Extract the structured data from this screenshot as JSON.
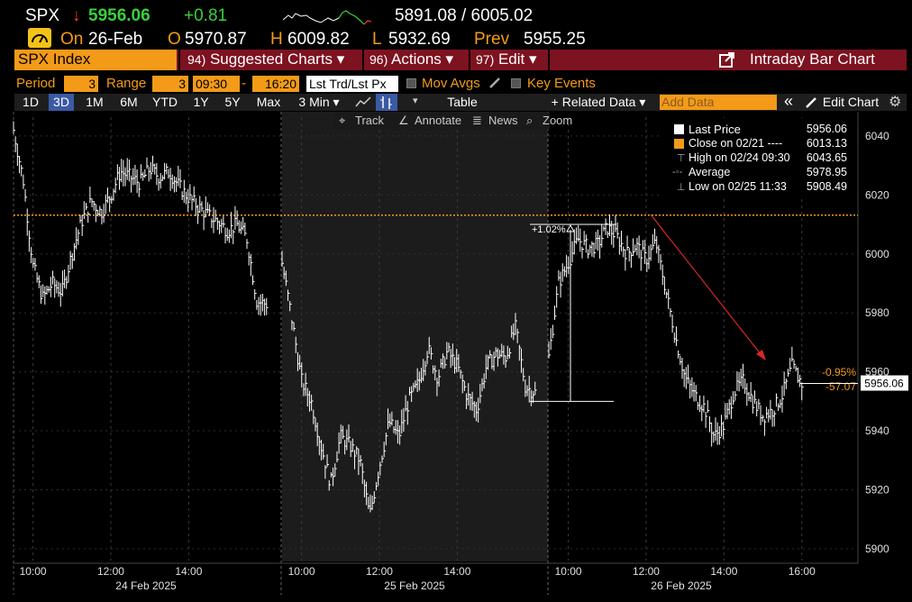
{
  "quote": {
    "ticker": "SPX",
    "arrow": "↓",
    "last": "5956.06",
    "change": "+0.81",
    "low_high": "5891.08 / 6005.02",
    "on_label": "On",
    "date": "26-Feb",
    "open_label": "O",
    "open": "5970.87",
    "high_label": "H",
    "high": "6009.82",
    "low_label": "L",
    "low": "5932.69",
    "prev_label": "Prev",
    "prev": "5955.25"
  },
  "menu": {
    "index_name": "SPX Index",
    "items": [
      {
        "num": "94)",
        "label": "Suggested Charts ▾"
      },
      {
        "num": "96)",
        "label": "Actions ▾"
      },
      {
        "num": "97)",
        "label": "Edit ▾"
      }
    ],
    "right_label": "Intraday Bar Chart"
  },
  "controls": {
    "period_label": "Period",
    "period_value": "3",
    "range_label": "Range",
    "range_value": "3",
    "time_from": "09:30",
    "time_to": "16:20",
    "lst_trd": "Lst Trd/Lst Px",
    "mov_avgs": "Mov Avgs",
    "key_events": "Key Events"
  },
  "tabs": {
    "ranges": [
      "1D",
      "3D",
      "1M",
      "6M",
      "YTD",
      "1Y",
      "5Y",
      "Max"
    ],
    "selected": "3D",
    "interval": "3 Min ▾",
    "table": "Table",
    "related": "+ Related Data ▾",
    "add_data_placeholder": "Add Data",
    "collapse": "«",
    "edit_chart": "Edit Chart"
  },
  "toolbar": {
    "track": "Track",
    "annotate": "Annotate",
    "news": "News",
    "zoom": "Zoom"
  },
  "legend": {
    "rows": [
      {
        "label": "Last Price",
        "value": "5956.06"
      },
      {
        "label": "Close on 02/21 ----",
        "value": "6013.13"
      },
      {
        "label": "High on 02/24 09:30",
        "value": "6043.65"
      },
      {
        "label": "Average",
        "value": "5978.95"
      },
      {
        "label": "Low on 02/25 11:33",
        "value": "5908.49"
      }
    ]
  },
  "colors": {
    "orange": "#f39a19",
    "green": "#38d13a",
    "red": "#ff3b30",
    "menu_red": "#7d1220",
    "blue_sel": "#3a5aa5"
  },
  "annotations": {
    "pct_up": "+1.02%",
    "pct_down": "-0.95%",
    "pts_down": "-57.07",
    "last_tag": "5956.06"
  },
  "chart_data": {
    "type": "bar",
    "y_ticks": [
      5900,
      5920,
      5940,
      5960,
      5980,
      6000,
      6020,
      6040
    ],
    "ylim": [
      5896,
      6047
    ],
    "prev_close_line": 6013.13,
    "days": [
      {
        "label": "24 Feb 2025",
        "ticks": [
          "10:00",
          "12:00",
          "14:00"
        ]
      },
      {
        "label": "25 Feb 2025",
        "ticks": [
          "10:00",
          "12:00",
          "14:00"
        ]
      },
      {
        "label": "26 Feb 2025",
        "ticks": [
          "10:00",
          "12:00",
          "14:00",
          "16:00"
        ]
      }
    ],
    "day_paths": [
      [
        [
          9.5,
          6042
        ],
        [
          9.75,
          6025
        ],
        [
          10.0,
          5996
        ],
        [
          10.25,
          5985
        ],
        [
          10.5,
          5990
        ],
        [
          10.75,
          5987
        ],
        [
          11.0,
          6000
        ],
        [
          11.25,
          6011
        ],
        [
          11.5,
          6018
        ],
        [
          11.75,
          6014
        ],
        [
          12.0,
          6020
        ],
        [
          12.25,
          6028
        ],
        [
          12.5,
          6026
        ],
        [
          12.75,
          6024
        ],
        [
          13.0,
          6029
        ],
        [
          13.25,
          6026
        ],
        [
          13.5,
          6028
        ],
        [
          13.75,
          6023
        ],
        [
          14.0,
          6019
        ],
        [
          14.25,
          6016
        ],
        [
          14.5,
          6013
        ],
        [
          14.75,
          6011
        ],
        [
          15.0,
          6008
        ],
        [
          15.25,
          6010
        ],
        [
          15.5,
          6005
        ],
        [
          15.75,
          5984
        ],
        [
          16.0,
          5983
        ]
      ],
      [
        [
          9.5,
          5997
        ],
        [
          9.75,
          5978
        ],
        [
          10.0,
          5957
        ],
        [
          10.25,
          5950
        ],
        [
          10.5,
          5935
        ],
        [
          10.75,
          5922
        ],
        [
          11.0,
          5938
        ],
        [
          11.25,
          5935
        ],
        [
          11.5,
          5930
        ],
        [
          11.75,
          5911
        ],
        [
          12.0,
          5928
        ],
        [
          12.25,
          5943
        ],
        [
          12.5,
          5938
        ],
        [
          12.75,
          5950
        ],
        [
          13.0,
          5956
        ],
        [
          13.25,
          5968
        ],
        [
          13.5,
          5958
        ],
        [
          13.75,
          5967
        ],
        [
          14.0,
          5962
        ],
        [
          14.25,
          5952
        ],
        [
          14.5,
          5947
        ],
        [
          14.75,
          5962
        ],
        [
          15.0,
          5966
        ],
        [
          15.25,
          5965
        ],
        [
          15.5,
          5975
        ],
        [
          15.75,
          5955
        ],
        [
          16.0,
          5953
        ]
      ],
      [
        [
          9.5,
          5965
        ],
        [
          9.75,
          5990
        ],
        [
          10.0,
          5997
        ],
        [
          10.25,
          6005
        ],
        [
          10.5,
          6002
        ],
        [
          10.75,
          6003
        ],
        [
          11.0,
          6009
        ],
        [
          11.25,
          6006
        ],
        [
          11.5,
          6000
        ],
        [
          11.75,
          6003
        ],
        [
          12.0,
          5998
        ],
        [
          12.25,
          6004
        ],
        [
          12.5,
          5988
        ],
        [
          12.75,
          5972
        ],
        [
          13.0,
          5958
        ],
        [
          13.25,
          5952
        ],
        [
          13.5,
          5948
        ],
        [
          13.75,
          5938
        ],
        [
          14.0,
          5942
        ],
        [
          14.25,
          5953
        ],
        [
          14.5,
          5957
        ],
        [
          14.75,
          5950
        ],
        [
          15.0,
          5945
        ],
        [
          15.25,
          5947
        ],
        [
          15.5,
          5952
        ],
        [
          15.75,
          5962
        ],
        [
          16.0,
          5956
        ]
      ]
    ],
    "shaded_day": 1,
    "up_move": {
      "from": 5950,
      "to": 6010,
      "label": "+1.02%"
    },
    "down_move": {
      "label1": "-0.95%",
      "label2": "-57.07"
    },
    "last_price": 5956.06
  }
}
